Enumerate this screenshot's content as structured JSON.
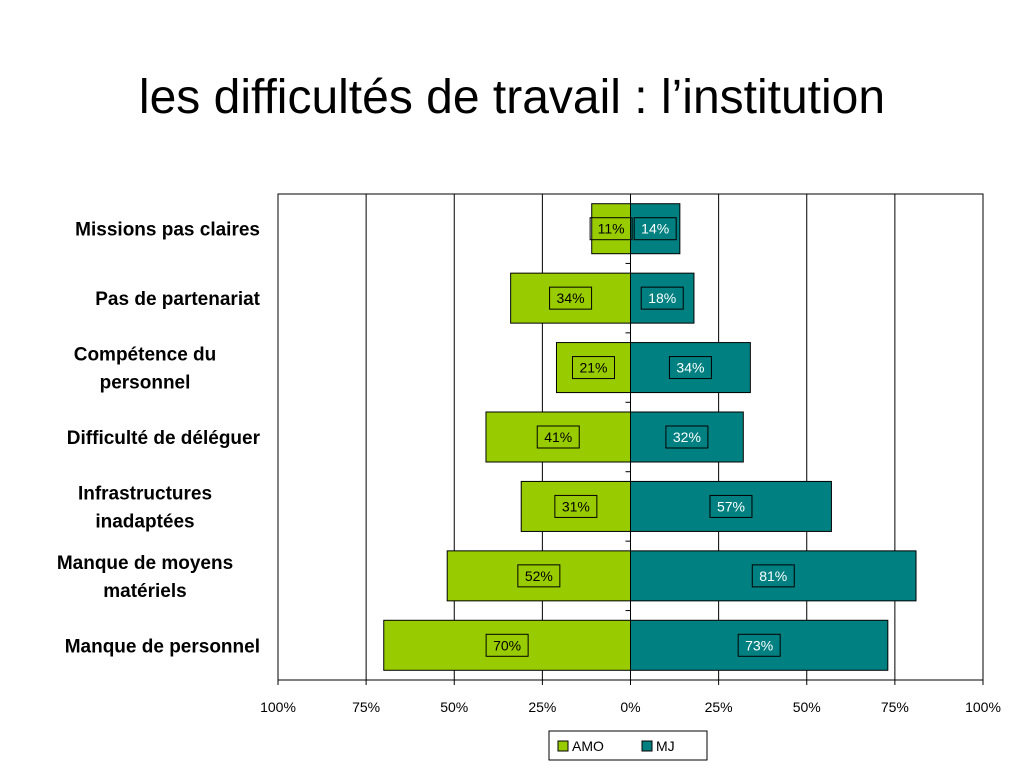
{
  "slide": {
    "title": "les difficultés de travail : l’institution"
  },
  "chart_data": {
    "type": "bar",
    "orientation": "horizontal-diverging",
    "categories": [
      [
        "Missions pas claires"
      ],
      [
        "Pas de partenariat"
      ],
      [
        "Compétence du",
        "personnel"
      ],
      [
        "Difficulté de déléguer"
      ],
      [
        "Infrastructures",
        "inadaptées"
      ],
      [
        "Manque de moyens",
        "matériels"
      ],
      [
        "Manque de personnel"
      ]
    ],
    "series": [
      {
        "name": "AMO",
        "color": "#99cc00",
        "direction": "left",
        "values": [
          11,
          34,
          21,
          41,
          31,
          52,
          70
        ]
      },
      {
        "name": "MJ",
        "color": "#008080",
        "direction": "right",
        "values": [
          14,
          18,
          34,
          32,
          57,
          81,
          73
        ]
      }
    ],
    "data_labels": {
      "AMO": [
        "11%",
        "34%",
        "21%",
        "41%",
        "31%",
        "52%",
        "70%"
      ],
      "MJ": [
        "14%",
        "18%",
        "34%",
        "32%",
        "57%",
        "81%",
        "73%"
      ]
    },
    "x_ticks": [
      -100,
      -75,
      -50,
      -25,
      0,
      25,
      50,
      75,
      100
    ],
    "x_tick_labels": [
      "100%",
      "75%",
      "50%",
      "25%",
      "0%",
      "25%",
      "50%",
      "75%",
      "100%"
    ],
    "xlim": [
      -100,
      100
    ],
    "grid": true,
    "legend": "bottom-center"
  }
}
